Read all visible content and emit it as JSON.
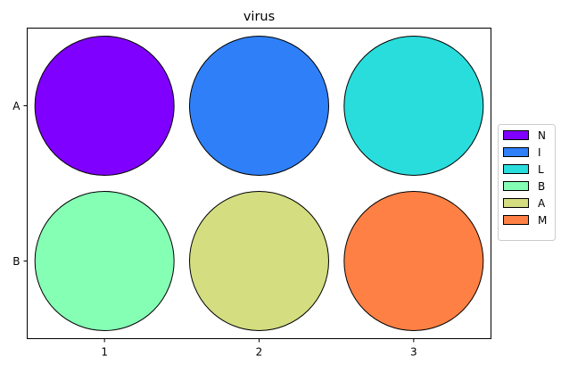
{
  "chart_data": {
    "type": "grid",
    "title": "virus",
    "x_ticks": [
      "1",
      "2",
      "3"
    ],
    "y_ticks": [
      "A",
      "B"
    ],
    "xlabel": "",
    "ylabel": "",
    "grid": false,
    "legend_position": "right",
    "legend": [
      {
        "label": "N",
        "color": "#8000ff"
      },
      {
        "label": "I",
        "color": "#2f80f8"
      },
      {
        "label": "L",
        "color": "#2adddd"
      },
      {
        "label": "B",
        "color": "#85ffb4"
      },
      {
        "label": "A",
        "color": "#d4dd80"
      },
      {
        "label": "M",
        "color": "#ff8044"
      }
    ],
    "cells": [
      {
        "row": "A",
        "col": "1",
        "label": "N",
        "color": "#8000ff"
      },
      {
        "row": "A",
        "col": "2",
        "label": "I",
        "color": "#2f80f8"
      },
      {
        "row": "A",
        "col": "3",
        "label": "L",
        "color": "#2adddd"
      },
      {
        "row": "B",
        "col": "1",
        "label": "B",
        "color": "#85ffb4"
      },
      {
        "row": "B",
        "col": "2",
        "label": "A",
        "color": "#d4dd80"
      },
      {
        "row": "B",
        "col": "3",
        "label": "M",
        "color": "#ff8044"
      }
    ]
  }
}
